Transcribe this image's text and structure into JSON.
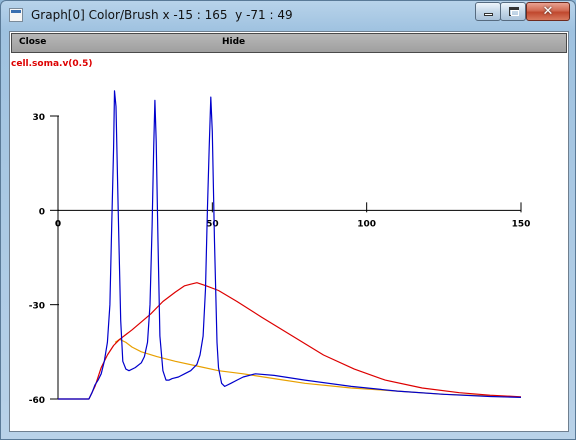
{
  "window": {
    "title": "Graph[0] Color/Brush x -15 : 165  y -71 : 49"
  },
  "menu": {
    "close_label": "Close",
    "hide_label": "Hide"
  },
  "legend_label": "cell.soma.v(0.5)",
  "colors": {
    "legend": "#dd0000",
    "blue_trace": "#0000cc",
    "red_trace": "#dd0000",
    "orange_trace": "#e8a000",
    "axes": "#000000"
  },
  "chart_data": {
    "type": "line",
    "title": "",
    "xlabel": "",
    "ylabel": "",
    "xlim": [
      -15,
      165
    ],
    "ylim": [
      -71,
      49
    ],
    "x_ticks": [
      0,
      50,
      100,
      150
    ],
    "y_ticks": [
      30,
      0,
      -30,
      -60
    ],
    "grid": false,
    "series": [
      {
        "color": "#0000cc",
        "points": [
          [
            0,
            -60
          ],
          [
            10,
            -60
          ],
          [
            11,
            -58
          ],
          [
            12,
            -55.5
          ],
          [
            13,
            -54
          ],
          [
            14,
            -52
          ],
          [
            15,
            -48
          ],
          [
            16,
            -42
          ],
          [
            16.8,
            -30
          ],
          [
            17.4,
            -5
          ],
          [
            18,
            20
          ],
          [
            18.3,
            38
          ],
          [
            18.8,
            33
          ],
          [
            19.5,
            0
          ],
          [
            20.3,
            -35
          ],
          [
            21,
            -48
          ],
          [
            22,
            -50.5
          ],
          [
            23,
            -51
          ],
          [
            25,
            -50
          ],
          [
            27,
            -48.5
          ],
          [
            28,
            -46.5
          ],
          [
            29,
            -42
          ],
          [
            29.8,
            -30
          ],
          [
            30.5,
            -5
          ],
          [
            31,
            20
          ],
          [
            31.4,
            35
          ],
          [
            31.8,
            22
          ],
          [
            32.4,
            -10
          ],
          [
            33,
            -40
          ],
          [
            34,
            -51
          ],
          [
            35,
            -54
          ],
          [
            36,
            -54
          ],
          [
            37,
            -53.5
          ],
          [
            39,
            -53
          ],
          [
            41,
            -52
          ],
          [
            43,
            -51
          ],
          [
            45,
            -49
          ],
          [
            46,
            -46
          ],
          [
            47,
            -40
          ],
          [
            47.8,
            -25
          ],
          [
            48.4,
            0
          ],
          [
            49,
            20
          ],
          [
            49.5,
            36
          ],
          [
            50,
            25
          ],
          [
            50.7,
            -10
          ],
          [
            51.5,
            -42
          ],
          [
            52,
            -50
          ],
          [
            53,
            -55
          ],
          [
            54,
            -56
          ],
          [
            56,
            -55
          ],
          [
            58,
            -54
          ],
          [
            60,
            -53
          ],
          [
            64,
            -52
          ],
          [
            70,
            -52.5
          ],
          [
            80,
            -54
          ],
          [
            95,
            -56
          ],
          [
            110,
            -57.5
          ],
          [
            125,
            -58.5
          ],
          [
            140,
            -59.2
          ],
          [
            150,
            -59.5
          ]
        ]
      },
      {
        "color": "#dd0000",
        "points": [
          [
            0,
            -60
          ],
          [
            10,
            -60
          ],
          [
            12,
            -56
          ],
          [
            14,
            -50
          ],
          [
            16,
            -46
          ],
          [
            18,
            -43
          ],
          [
            20,
            -41
          ],
          [
            24,
            -38
          ],
          [
            30,
            -33
          ],
          [
            34,
            -29
          ],
          [
            38,
            -26
          ],
          [
            41,
            -24
          ],
          [
            43,
            -23.5
          ],
          [
            45,
            -23
          ],
          [
            48,
            -24
          ],
          [
            52,
            -25.5
          ],
          [
            58,
            -29
          ],
          [
            66,
            -34
          ],
          [
            76,
            -40
          ],
          [
            86,
            -46
          ],
          [
            96,
            -50.5
          ],
          [
            106,
            -54
          ],
          [
            118,
            -56.5
          ],
          [
            130,
            -58
          ],
          [
            140,
            -58.8
          ],
          [
            150,
            -59.3
          ]
        ]
      },
      {
        "color": "#e8a000",
        "points": [
          [
            18.5,
            -42
          ],
          [
            20,
            -41
          ],
          [
            22,
            -42
          ],
          [
            24,
            -43.5
          ],
          [
            27,
            -45
          ],
          [
            32,
            -46.5
          ],
          [
            38,
            -48
          ],
          [
            45,
            -49.5
          ],
          [
            52,
            -51
          ],
          [
            60,
            -52
          ],
          [
            70,
            -53.5
          ],
          [
            80,
            -55
          ],
          [
            95,
            -56.5
          ],
          [
            110,
            -57.5
          ],
          [
            125,
            -58.5
          ],
          [
            140,
            -59
          ],
          [
            150,
            -59.4
          ]
        ]
      }
    ]
  }
}
